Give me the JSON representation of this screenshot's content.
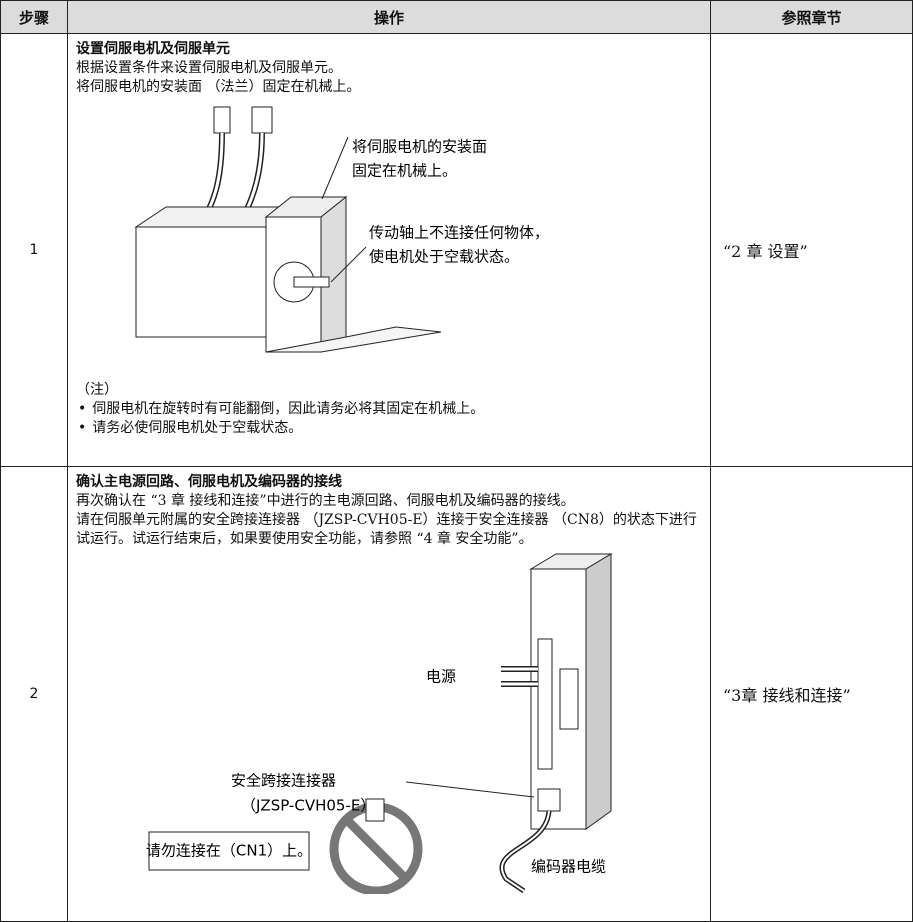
{
  "table": {
    "header": [
      "步骤",
      "操作",
      "参照章节"
    ],
    "rows": [
      {
        "step": "1",
        "title": "设置伺服电机及伺服单元",
        "body": [
          "根据设置条件来设置伺服电机及伺服单元。",
          "将伺服电机的安装面 （法兰）固定在机械上。"
        ],
        "figure_labels": [
          "将伺服电机的安装面",
          "固定在机械上。",
          "传动轴上不连接任何物体，",
          "使电机处于空载状态。"
        ],
        "note_title": "（注）",
        "notes": [
          "伺服电机在旋转时有可能翻倒，因此请务必将其固定在机械上。",
          "请务必使伺服电机处于空载状态。"
        ],
        "reference": "“2 章 设置”"
      },
      {
        "step": "2",
        "title": "确认主电源回路、伺服电机及编码器的接线",
        "body": [
          "再次确认在 “3 章 接线和连接”中进行的主电源回路、伺服电机及编码器的接线。",
          "请在伺服单元附属的安全跨接连接器 （JZSP-CVH05-E）连接于安全连接器 （CN8）的状态下进行试运行。试运行结束后，如果要使用安全功能，请参照 “4 章 安全功能”。"
        ],
        "figure_labels": [
          "电源",
          "安全跨接连接器",
          "（JZSP-CVH05-E）",
          "请勿连接在（CN1）上。",
          "编码器电缆"
        ],
        "reference": "“3章 接线和连接”"
      }
    ]
  }
}
